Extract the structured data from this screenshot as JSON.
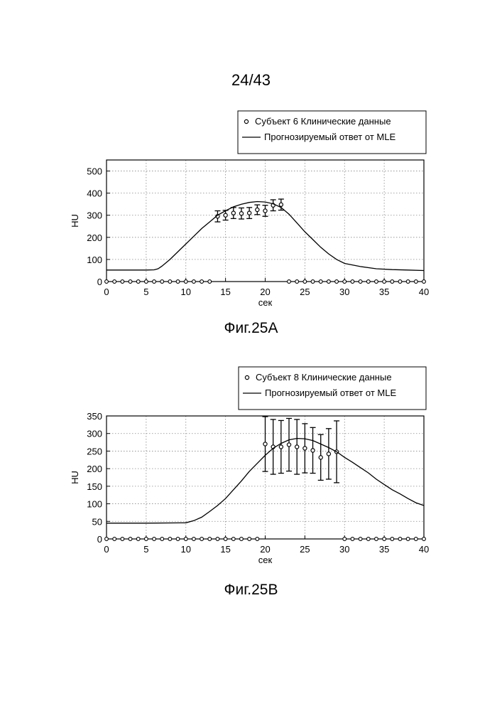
{
  "page_number": "24/43",
  "chart_data": [
    {
      "type": "scatter",
      "figure_label": "Фиг.25A",
      "xlabel": "сек",
      "ylabel": "HU",
      "xlim": [
        0,
        40
      ],
      "ylim": [
        0,
        550
      ],
      "x_ticks": [
        0,
        5,
        10,
        15,
        20,
        25,
        30,
        35,
        40
      ],
      "y_ticks": [
        0,
        100,
        200,
        300,
        400,
        500
      ],
      "grid": true,
      "legend_position": "top-right",
      "legend": [
        "Субъект 6 Клинические данные",
        "Прогнозируемый ответ от MLE"
      ],
      "series": [
        {
          "name": "Субъект 6 Клинические данные",
          "kind": "points_with_error",
          "x": [
            14,
            15,
            16,
            17,
            18,
            19,
            20,
            21,
            22
          ],
          "y": [
            295,
            300,
            310,
            308,
            310,
            325,
            320,
            345,
            348
          ],
          "err": [
            25,
            22,
            25,
            25,
            25,
            22,
            25,
            25,
            25
          ]
        },
        {
          "name": "Субъект 6 Клинические данные",
          "kind": "zero_points",
          "x": [
            0,
            1,
            2,
            3,
            4,
            5,
            6,
            7,
            8,
            9,
            10,
            11,
            12,
            13,
            23,
            24,
            25,
            26,
            27,
            28,
            29,
            30,
            31,
            32,
            33,
            34,
            35,
            36,
            37,
            38,
            39,
            40
          ],
          "y": [
            0,
            0,
            0,
            0,
            0,
            0,
            0,
            0,
            0,
            0,
            0,
            0,
            0,
            0,
            0,
            0,
            0,
            0,
            0,
            0,
            0,
            0,
            0,
            0,
            0,
            0,
            0,
            0,
            0,
            0,
            0,
            0
          ]
        },
        {
          "name": "Прогнозируемый ответ от MLE",
          "kind": "line",
          "x": [
            0,
            5,
            6,
            6.5,
            7,
            8,
            9,
            10,
            11,
            12,
            13,
            14,
            15,
            16,
            17,
            18,
            19,
            20,
            21,
            22,
            23,
            24,
            25,
            26,
            27,
            28,
            29,
            30,
            32,
            34,
            36,
            38,
            40
          ],
          "y": [
            52,
            52,
            53,
            58,
            70,
            100,
            135,
            170,
            205,
            240,
            270,
            300,
            320,
            338,
            350,
            358,
            362,
            360,
            352,
            335,
            305,
            265,
            225,
            190,
            155,
            125,
            100,
            82,
            68,
            58,
            54,
            52,
            50
          ]
        }
      ]
    },
    {
      "type": "scatter",
      "figure_label": "Фиг.25B",
      "xlabel": "сек",
      "ylabel": "HU",
      "xlim": [
        0,
        40
      ],
      "ylim": [
        0,
        350
      ],
      "x_ticks": [
        0,
        5,
        10,
        15,
        20,
        25,
        30,
        35,
        40
      ],
      "y_ticks": [
        0,
        50,
        100,
        150,
        200,
        250,
        300,
        350
      ],
      "grid": true,
      "legend_position": "top-right",
      "legend": [
        "Субъект 8 Клинические данные",
        "Прогнозируемый ответ от MLE"
      ],
      "series": [
        {
          "name": "Субъект 8 Клинические данные",
          "kind": "points_with_error",
          "x": [
            20,
            21,
            22,
            23,
            24,
            25,
            26,
            27,
            28,
            29
          ],
          "y": [
            270,
            262,
            262,
            268,
            262,
            258,
            252,
            232,
            242,
            248
          ],
          "err": [
            78,
            78,
            75,
            75,
            78,
            70,
            65,
            65,
            72,
            88
          ]
        },
        {
          "name": "Субъект 8 Клинические данные",
          "kind": "zero_points",
          "x": [
            0,
            1,
            2,
            3,
            4,
            5,
            6,
            7,
            8,
            9,
            10,
            11,
            12,
            13,
            14,
            15,
            16,
            17,
            18,
            19,
            30,
            31,
            32,
            33,
            34,
            35,
            36,
            37,
            38,
            39,
            40
          ],
          "y": [
            0,
            0,
            0,
            0,
            0,
            0,
            0,
            0,
            0,
            0,
            0,
            0,
            0,
            0,
            0,
            0,
            0,
            0,
            0,
            0,
            0,
            0,
            0,
            0,
            0,
            0,
            0,
            0,
            0,
            0,
            0
          ]
        },
        {
          "name": "Прогнозируемый ответ от MLE",
          "kind": "line",
          "x": [
            0,
            5,
            10,
            11,
            12,
            13,
            14,
            15,
            16,
            17,
            18,
            19,
            20,
            21,
            22,
            23,
            24,
            25,
            26,
            27,
            28,
            29,
            30,
            31,
            32,
            33,
            34,
            35,
            36,
            37,
            38,
            39,
            40
          ],
          "y": [
            45,
            45,
            46,
            52,
            62,
            78,
            95,
            115,
            140,
            165,
            192,
            215,
            238,
            258,
            272,
            282,
            286,
            285,
            280,
            270,
            260,
            248,
            232,
            218,
            203,
            188,
            170,
            155,
            140,
            128,
            115,
            103,
            95
          ]
        }
      ]
    }
  ]
}
